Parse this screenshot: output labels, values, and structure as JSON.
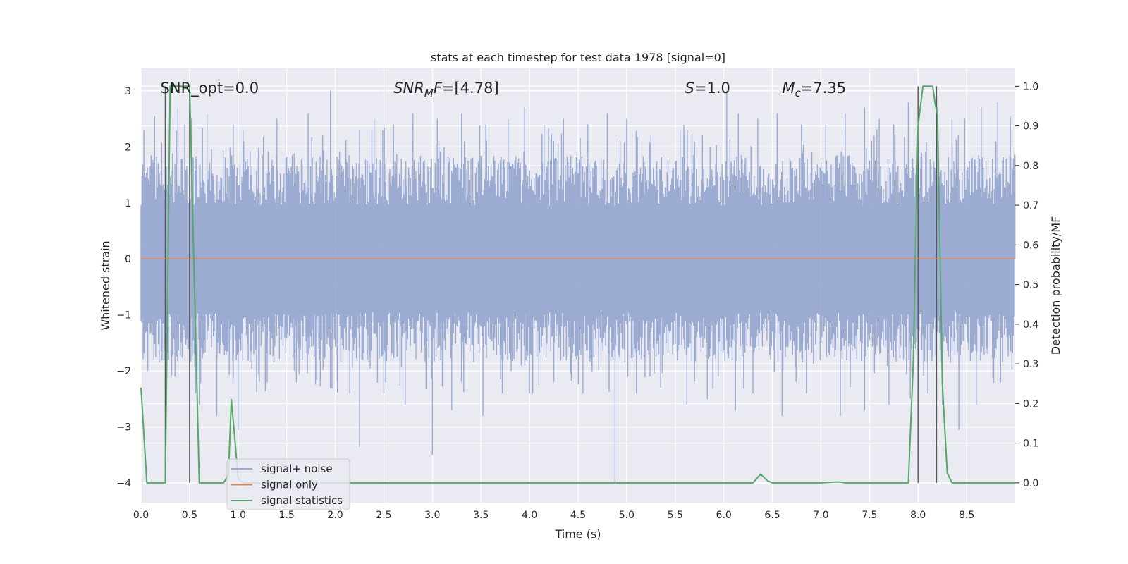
{
  "chart_data": {
    "type": "line",
    "title": "stats at each timestep for test data 1978 [signal=0]",
    "xlabel": "Time (s)",
    "ylabel_left": "Whitened strain",
    "ylabel_right": "Detection probability/MF",
    "xlim": [
      0.0,
      9.0
    ],
    "ylim_left": [
      -4.35,
      3.4
    ],
    "ylim_right": [
      -0.05,
      1.045
    ],
    "x_ticks": [
      "0.0",
      "0.5",
      "1.0",
      "1.5",
      "2.0",
      "2.5",
      "3.0",
      "3.5",
      "4.0",
      "4.5",
      "5.0",
      "5.5",
      "6.0",
      "6.5",
      "7.0",
      "7.5",
      "8.0",
      "8.5"
    ],
    "y_ticks_left": [
      "−4",
      "−3",
      "−2",
      "−1",
      "0",
      "1",
      "2",
      "3"
    ],
    "y_ticks_right": [
      "0.0",
      "0.1",
      "0.2",
      "0.3",
      "0.4",
      "0.5",
      "0.6",
      "0.7",
      "0.8",
      "0.9",
      "1.0"
    ],
    "grid": true,
    "legend_position": "lower-left",
    "series": [
      {
        "name": "signal+ noise",
        "axis": "left",
        "color": "#8da0cb",
        "description": "dense whitened noise, roughly +/-1.3 with spikes to about +/-3",
        "spikes_high": [
          [
            0.03,
            2.3
          ],
          [
            0.14,
            2.55
          ],
          [
            0.38,
            2.7
          ],
          [
            0.45,
            2.4
          ],
          [
            0.52,
            2.5
          ],
          [
            0.68,
            2.6
          ],
          [
            0.95,
            2.4
          ],
          [
            1.05,
            2.3
          ],
          [
            1.4,
            2.5
          ],
          [
            1.72,
            2.6
          ],
          [
            1.87,
            2.2
          ],
          [
            1.95,
            3.0
          ],
          [
            2.25,
            2.3
          ],
          [
            2.4,
            2.5
          ],
          [
            2.6,
            2.4
          ],
          [
            2.8,
            2.6
          ],
          [
            3.05,
            2.5
          ],
          [
            3.3,
            2.6
          ],
          [
            3.55,
            2.4
          ],
          [
            3.78,
            2.5
          ],
          [
            3.95,
            2.7
          ],
          [
            4.15,
            2.4
          ],
          [
            4.35,
            2.5
          ],
          [
            4.6,
            2.4
          ],
          [
            4.8,
            2.6
          ],
          [
            5.0,
            2.5
          ],
          [
            5.25,
            2.2
          ],
          [
            5.55,
            2.3
          ],
          [
            5.78,
            2.2
          ],
          [
            6.03,
            3.0
          ],
          [
            6.15,
            2.6
          ],
          [
            6.35,
            2.5
          ],
          [
            6.55,
            2.6
          ],
          [
            6.8,
            2.4
          ],
          [
            7.05,
            2.4
          ],
          [
            7.25,
            2.6
          ],
          [
            7.45,
            2.7
          ],
          [
            7.6,
            2.5
          ],
          [
            7.75,
            2.4
          ],
          [
            7.9,
            2.8
          ],
          [
            8.0,
            2.6
          ],
          [
            8.2,
            2.7
          ],
          [
            8.35,
            2.5
          ],
          [
            8.48,
            2.5
          ],
          [
            8.65,
            2.7
          ],
          [
            8.82,
            2.8
          ],
          [
            8.95,
            2.55
          ]
        ],
        "spikes_low": [
          [
            0.07,
            -2.0
          ],
          [
            0.35,
            -2.1
          ],
          [
            0.5,
            -3.1
          ],
          [
            0.56,
            -2.4
          ],
          [
            0.6,
            -2.6
          ],
          [
            0.78,
            -2.8
          ],
          [
            0.95,
            -2.1
          ],
          [
            1.0,
            -3.05
          ],
          [
            1.3,
            -2.2
          ],
          [
            1.6,
            -2.2
          ],
          [
            1.95,
            -2.3
          ],
          [
            2.15,
            -2.4
          ],
          [
            2.25,
            -3.35
          ],
          [
            2.5,
            -2.4
          ],
          [
            2.72,
            -2.6
          ],
          [
            3.0,
            -3.5
          ],
          [
            3.2,
            -2.7
          ],
          [
            3.52,
            -2.8
          ],
          [
            3.72,
            -2.4
          ],
          [
            4.0,
            -2.4
          ],
          [
            4.25,
            -2.2
          ],
          [
            4.55,
            -2.4
          ],
          [
            4.88,
            -4.0
          ],
          [
            5.1,
            -2.4
          ],
          [
            5.35,
            -2.3
          ],
          [
            5.62,
            -2.6
          ],
          [
            5.83,
            -2.5
          ],
          [
            6.12,
            -2.7
          ],
          [
            6.3,
            -2.4
          ],
          [
            6.6,
            -2.8
          ],
          [
            6.85,
            -2.4
          ],
          [
            7.2,
            -2.8
          ],
          [
            7.45,
            -2.7
          ],
          [
            7.7,
            -2.6
          ],
          [
            7.92,
            -2.5
          ],
          [
            8.1,
            -2.4
          ],
          [
            8.25,
            -2.6
          ],
          [
            8.42,
            -3.05
          ],
          [
            8.6,
            -2.6
          ],
          [
            8.85,
            -2.2
          ]
        ]
      },
      {
        "name": "signal only",
        "axis": "left",
        "color": "#dd8452",
        "x": [
          0.0,
          9.0
        ],
        "y": [
          0.0,
          0.0
        ]
      },
      {
        "name": "signal statistics",
        "axis": "right",
        "color": "#55a868",
        "x": [
          0.0,
          0.06,
          0.1,
          0.15,
          0.2,
          0.25,
          0.3,
          0.35,
          0.4,
          0.45,
          0.5,
          0.55,
          0.6,
          0.65,
          0.7,
          0.75,
          0.8,
          0.85,
          0.9,
          0.93,
          0.97,
          1.0,
          1.05,
          1.1,
          1.2,
          2.0,
          3.0,
          4.0,
          5.0,
          6.0,
          6.3,
          6.38,
          6.45,
          6.5,
          6.6,
          7.0,
          7.15,
          7.2,
          7.25,
          7.5,
          7.9,
          7.95,
          8.0,
          8.05,
          8.1,
          8.15,
          8.18,
          8.2,
          8.25,
          8.3,
          8.35,
          9.0
        ],
        "y": [
          0.24,
          0.0,
          0.0,
          0.0,
          0.0,
          0.0,
          1.0,
          1.0,
          1.0,
          1.0,
          1.0,
          0.5,
          0.0,
          0.0,
          0.0,
          0.0,
          0.0,
          0.0,
          0.02,
          0.21,
          0.1,
          0.01,
          0.0,
          0.0,
          0.0,
          0.0,
          0.0,
          0.0,
          0.0,
          0.0,
          0.0,
          0.022,
          0.005,
          0.0,
          0.0,
          0.0,
          0.002,
          0.002,
          0.0,
          0.0,
          0.0,
          0.3,
          0.9,
          1.0,
          1.0,
          1.0,
          0.95,
          0.93,
          0.25,
          0.025,
          0.0,
          0.0
        ]
      }
    ],
    "vertical_lines": [
      {
        "x": 0.25,
        "color": "#555555"
      },
      {
        "x": 0.5,
        "color": "#555555"
      },
      {
        "x": 8.0,
        "color": "#555555"
      },
      {
        "x": 8.19,
        "color": "#555555"
      }
    ],
    "annotations": [
      {
        "name": "snr-opt",
        "parts": [
          {
            "t": "SNR_opt=0.0",
            "style": "normal"
          }
        ],
        "x": 0.2,
        "y_right": 0.995
      },
      {
        "name": "snr-mf",
        "parts": [
          {
            "t": "SNR",
            "style": "italic"
          },
          {
            "t": "M",
            "style": "italic-sub"
          },
          {
            "t": "F",
            "style": "italic"
          },
          {
            "t": "=[4.78]",
            "style": "normal"
          }
        ],
        "x": 2.6,
        "y_right": 0.995
      },
      {
        "name": "s-value",
        "parts": [
          {
            "t": "S",
            "style": "italic"
          },
          {
            "t": "=1.0",
            "style": "normal"
          }
        ],
        "x": 5.6,
        "y_right": 0.995
      },
      {
        "name": "mc-value",
        "parts": [
          {
            "t": "M",
            "style": "italic"
          },
          {
            "t": "c",
            "style": "italic-sub"
          },
          {
            "t": "=7.35",
            "style": "normal"
          }
        ],
        "x": 6.6,
        "y_right": 0.995
      }
    ]
  }
}
